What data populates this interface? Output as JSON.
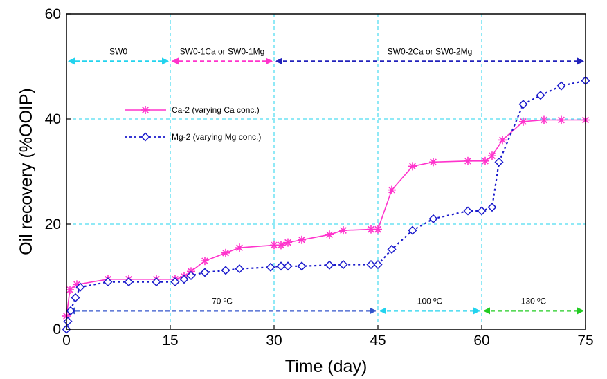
{
  "chart_data": {
    "type": "line",
    "title": "",
    "xlabel": "Time (day)",
    "ylabel": "Oil recovery (%OOIP)",
    "xlim": [
      0,
      75
    ],
    "ylim": [
      0,
      60
    ],
    "xticks": [
      0,
      15,
      30,
      45,
      60,
      75
    ],
    "yticks": [
      0,
      20,
      40,
      60
    ],
    "grid": "dashed vertical lines at x = 15, 30, 45, 60; dashed horizontal lines at y = 20 and 40",
    "legend_position": "upper-left",
    "series": [
      {
        "name": "Ca-2 (varying Ca conc.)",
        "color": "#ff33cc",
        "marker": "asterisk",
        "line": "solid",
        "x": [
          0,
          0.5,
          1.5,
          6,
          9,
          13,
          15.7,
          17,
          18,
          20,
          23,
          25,
          30,
          31,
          32,
          34,
          38,
          40,
          44,
          45,
          47,
          50,
          53,
          58,
          60.5,
          61.5,
          63,
          66,
          69,
          71.5,
          75
        ],
        "values": [
          2.5,
          7.5,
          8.5,
          9.5,
          9.5,
          9.5,
          9.5,
          10,
          11,
          13,
          14.5,
          15.5,
          16,
          16,
          16.5,
          17,
          18,
          18.8,
          19,
          19,
          26.5,
          31,
          31.8,
          32,
          32,
          33,
          36,
          39.5,
          39.8,
          39.8,
          39.8
        ]
      },
      {
        "name": "Mg-2 (varying Mg conc.)",
        "color": "#1a1acc",
        "marker": "diamond",
        "line": "dotted",
        "x": [
          0,
          0.2,
          0.6,
          1.3,
          2,
          6,
          9,
          13,
          15.7,
          17,
          18,
          20,
          23,
          25,
          29.5,
          31,
          32,
          34,
          38,
          40,
          44,
          45,
          47,
          50,
          53,
          58,
          60,
          61.5,
          62.5,
          66,
          68.5,
          71.5,
          75
        ],
        "values": [
          0,
          1.5,
          3.5,
          6,
          8,
          9,
          9,
          9,
          9,
          9.5,
          10.2,
          10.8,
          11.2,
          11.5,
          11.8,
          12,
          12,
          12,
          12.2,
          12.3,
          12.3,
          12.3,
          15.2,
          18.8,
          21,
          22.5,
          22.5,
          23.2,
          31.8,
          42.8,
          44.5,
          46.3,
          47.3
        ]
      }
    ],
    "annotations": {
      "top": [
        {
          "text": "SW0",
          "from": 0,
          "to": 15,
          "y": 51,
          "color": "#22d3ee"
        },
        {
          "text": "SW0-1Ca or SW0-1Mg",
          "from": 15,
          "to": 30,
          "y": 51,
          "color": "#ff33cc"
        },
        {
          "text": "SW0-2Ca or SW0-2Mg",
          "from": 30,
          "to": 75,
          "y": 51,
          "color": "#2222bb"
        }
      ],
      "bottom": [
        {
          "text": "70 ºC",
          "from": 0,
          "to": 45,
          "y": 3.5,
          "color": "#3355cc"
        },
        {
          "text": "100 ºC",
          "from": 45,
          "to": 60,
          "y": 3.5,
          "color": "#22d3ee"
        },
        {
          "text": "130 ºC",
          "from": 60,
          "to": 75,
          "y": 3.5,
          "color": "#22cc22"
        }
      ]
    }
  }
}
